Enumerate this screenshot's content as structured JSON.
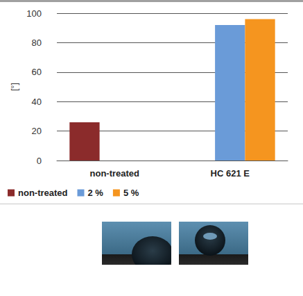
{
  "chart_data": {
    "type": "bar",
    "ylabel": "[°]",
    "categories": [
      "non-treated",
      "HC 621 E"
    ],
    "series": [
      {
        "name": "non-treated",
        "color": "#8b2b2b",
        "values": [
          26,
          null
        ]
      },
      {
        "name": "2 %",
        "color": "#6a9bd8",
        "values": [
          null,
          92
        ]
      },
      {
        "name": "5 %",
        "color": "#f5951f",
        "values": [
          null,
          96
        ]
      }
    ],
    "ylim": [
      0,
      100
    ],
    "yticks": [
      0,
      20,
      40,
      60,
      80,
      100
    ],
    "grid": true,
    "legend": "bottom left"
  }
}
